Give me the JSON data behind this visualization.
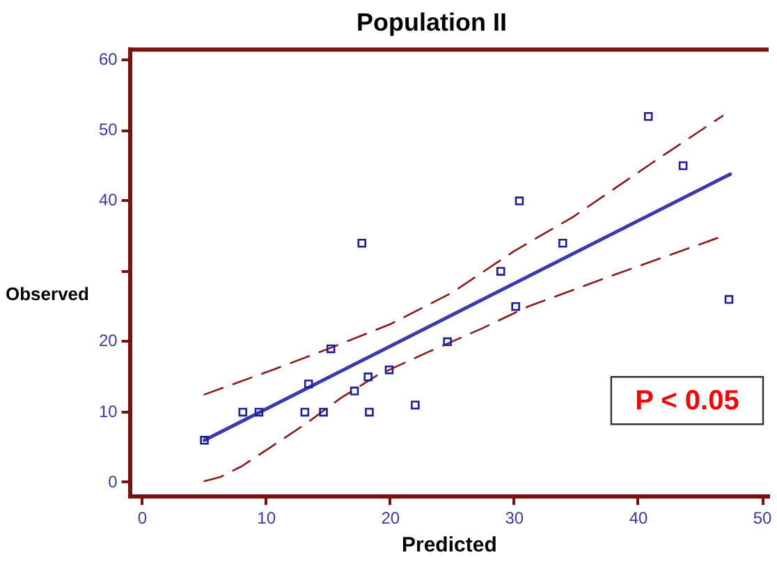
{
  "chart_data": {
    "type": "scatter",
    "title": "Population II",
    "xlabel": "Predicted",
    "ylabel": "Observed",
    "xlim": [
      -1,
      50.5
    ],
    "xticks": [
      0,
      10,
      20,
      30,
      40,
      50
    ],
    "ylim": [
      -2,
      61.5
    ],
    "yticks": [
      0,
      10,
      20,
      {
        "value": 30,
        "label": null
      },
      40,
      50,
      60
    ],
    "grid": false,
    "legend": false,
    "marker": "square",
    "annotations": [
      "P < 0.05"
    ],
    "series": [
      {
        "color": "#1c1c9c",
        "x": [
          5,
          8.1,
          9.4,
          13.1,
          13.4,
          14.6,
          15.2,
          17.1,
          18.2,
          18.3,
          19.9,
          22,
          17.7,
          24.6,
          28.9,
          30.1,
          30.4,
          33.9,
          40.8,
          43.6,
          47.3
        ],
        "values": [
          6,
          10,
          10,
          10,
          14,
          10,
          19,
          13,
          15,
          10,
          16,
          11,
          34,
          20,
          30,
          25,
          40,
          34,
          52,
          45,
          26
        ]
      },
      {
        "type": "line",
        "color": "#3a3aaa",
        "line_style": "solid",
        "marker": "none",
        "x": [
          5,
          47.4
        ],
        "values": [
          6,
          43.8
        ]
      },
      {
        "type": "line",
        "color": "#8b1a1a",
        "line_style": "dashed",
        "marker": "none",
        "x": [
          5,
          10.5,
          15,
          20,
          25,
          30,
          34.7,
          41.1,
          46.8
        ],
        "values": [
          12.5,
          16,
          19,
          22.5,
          27,
          32.9,
          37.7,
          45.4,
          52.1
        ]
      },
      {
        "type": "line",
        "color": "#8b1a1a",
        "line_style": "dashed",
        "marker": "none",
        "x": [
          5,
          6.3,
          8,
          10.5,
          13.3,
          16,
          18.9,
          23,
          27.4,
          31.1,
          38.2,
          46.8
        ],
        "values": [
          0.2,
          0.8,
          2.3,
          5.2,
          8.5,
          12,
          15.2,
          18.5,
          21.9,
          25,
          29.6,
          35
        ]
      }
    ]
  }
}
